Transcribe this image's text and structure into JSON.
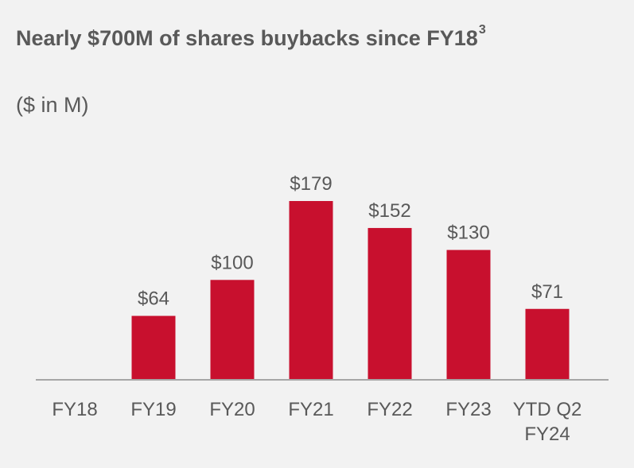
{
  "title": "Nearly $700M of shares buybacks since FY18",
  "title_superscript": "3",
  "subtitle": "($ in M)",
  "colors": {
    "bar": "#c8102e",
    "text": "#595959",
    "axis": "#a6a6a6",
    "background": "#f2f2f2"
  },
  "chart_data": {
    "type": "bar",
    "categories": [
      "FY18",
      "FY19",
      "FY20",
      "FY21",
      "FY22",
      "FY23",
      "YTD Q2 FY24"
    ],
    "category_label_lines": [
      [
        "FY18"
      ],
      [
        "FY19"
      ],
      [
        "FY20"
      ],
      [
        "FY21"
      ],
      [
        "FY22"
      ],
      [
        "FY23"
      ],
      [
        "YTD Q2",
        "FY24"
      ]
    ],
    "values": [
      0,
      64,
      100,
      179,
      152,
      130,
      71
    ],
    "data_labels": [
      "",
      "$64",
      "$100",
      "$179",
      "$152",
      "$130",
      "$71"
    ],
    "ylim": [
      0,
      179
    ],
    "grid": false,
    "legend": "none"
  }
}
